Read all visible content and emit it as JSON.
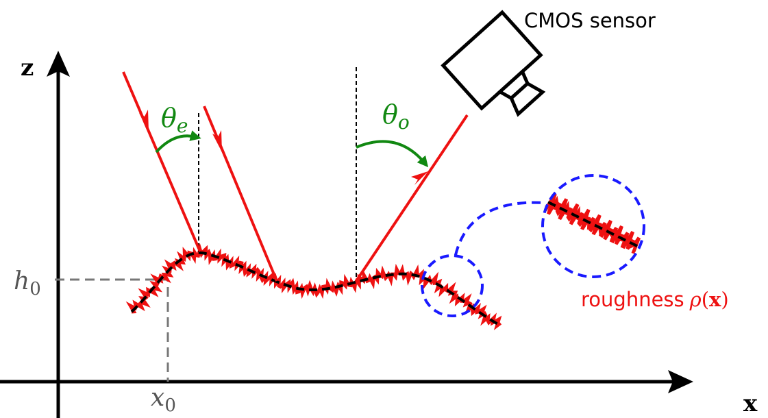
{
  "axes": {
    "z": "z",
    "x": "x"
  },
  "sensor": {
    "label": "CMOS sensor"
  },
  "reference": {
    "height": {
      "symbol": "h",
      "subscript": "0"
    },
    "position": {
      "symbol": "x",
      "subscript": "0"
    }
  },
  "angles": {
    "emission": {
      "symbol": "θ",
      "subscript": "e"
    },
    "observation": {
      "symbol": "θ",
      "subscript": "o"
    }
  },
  "roughness": {
    "label": "roughness",
    "symbol": "ρ",
    "open": "(",
    "variable": "x",
    "close": ")"
  }
}
